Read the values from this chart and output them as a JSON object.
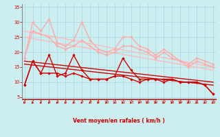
{
  "background_color": "#cceef0",
  "grid_color": "#aadddd",
  "xlabel": "Vent moyen/en rafales ( km/h )",
  "xlabel_color": "#cc0000",
  "tick_color": "#cc0000",
  "spine_color": "#888888",
  "x_ticks": [
    0,
    1,
    2,
    3,
    4,
    5,
    6,
    7,
    8,
    9,
    10,
    11,
    12,
    13,
    14,
    15,
    16,
    17,
    18,
    19,
    20,
    21,
    22,
    23
  ],
  "y_ticks": [
    5,
    10,
    15,
    20,
    25,
    30,
    35
  ],
  "xlim": [
    -0.3,
    23.3
  ],
  "ylim": [
    4.5,
    36
  ],
  "series": [
    {
      "x": [
        0,
        1,
        2,
        3,
        4,
        5,
        6,
        7,
        8,
        9,
        10,
        11,
        12,
        13,
        14,
        15,
        16,
        17,
        18,
        19,
        20,
        21,
        22,
        23
      ],
      "y": [
        18,
        30,
        27,
        31,
        23,
        22,
        24,
        30,
        24,
        21,
        20,
        21,
        25,
        25,
        22,
        21,
        19,
        21,
        19,
        17,
        16,
        18,
        17,
        16
      ],
      "color": "#ffaaaa",
      "lw": 1.0,
      "marker": "D",
      "ms": 1.8
    },
    {
      "x": [
        0,
        1,
        2,
        3,
        4,
        5,
        6,
        7,
        8,
        9,
        10,
        11,
        12,
        13,
        14,
        15,
        16,
        17,
        18,
        19,
        20,
        21,
        22,
        23
      ],
      "y": [
        18,
        27,
        26,
        25,
        22,
        21,
        22,
        24,
        22,
        20,
        19,
        20,
        22,
        22,
        21,
        20,
        18,
        20,
        18,
        17,
        15,
        17,
        16,
        15
      ],
      "color": "#ffaaaa",
      "lw": 1.0,
      "marker": "D",
      "ms": 1.8
    },
    {
      "x": [
        0,
        23
      ],
      "y": [
        27,
        15
      ],
      "color": "#ffbbbb",
      "lw": 1.0,
      "marker": null,
      "ms": 0
    },
    {
      "x": [
        0,
        23
      ],
      "y": [
        25,
        14
      ],
      "color": "#ffbbbb",
      "lw": 1.0,
      "marker": null,
      "ms": 0
    },
    {
      "x": [
        0,
        1,
        2,
        3,
        4,
        5,
        6,
        7,
        8,
        9,
        10,
        11,
        12,
        13,
        14,
        15,
        16,
        17,
        18,
        19,
        20,
        21,
        22,
        23
      ],
      "y": [
        9,
        17,
        13,
        19,
        12,
        13,
        19,
        14,
        11,
        11,
        11,
        12,
        18,
        14,
        11,
        11,
        11,
        10,
        11,
        10,
        10,
        10,
        9,
        6
      ],
      "color": "#cc0000",
      "lw": 1.0,
      "marker": "D",
      "ms": 1.8
    },
    {
      "x": [
        0,
        1,
        2,
        3,
        4,
        5,
        6,
        7,
        8,
        9,
        10,
        11,
        12,
        13,
        14,
        15,
        16,
        17,
        18,
        19,
        20,
        21,
        22,
        23
      ],
      "y": [
        9,
        17,
        13,
        13,
        13,
        12,
        13,
        12,
        11,
        11,
        11,
        12,
        12,
        11,
        10,
        11,
        11,
        11,
        11,
        10,
        10,
        10,
        9,
        6
      ],
      "color": "#cc0000",
      "lw": 1.0,
      "marker": "D",
      "ms": 1.8
    },
    {
      "x": [
        0,
        23
      ],
      "y": [
        17,
        10
      ],
      "color": "#cc0000",
      "lw": 1.0,
      "marker": null,
      "ms": 0
    },
    {
      "x": [
        0,
        23
      ],
      "y": [
        16,
        9
      ],
      "color": "#cc0000",
      "lw": 1.0,
      "marker": null,
      "ms": 0
    }
  ]
}
